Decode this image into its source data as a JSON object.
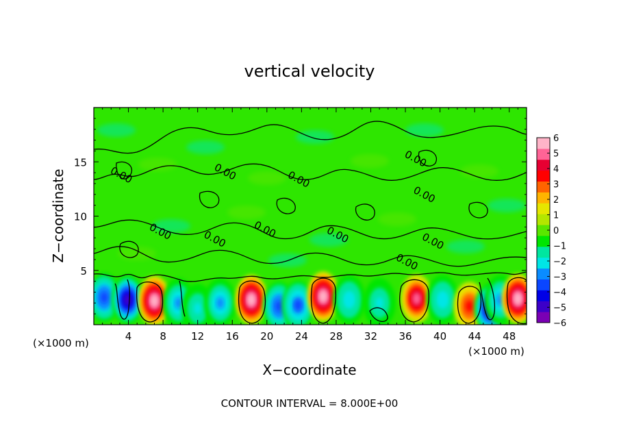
{
  "chart_data": {
    "type": "heatmap",
    "title": "vertical velocity",
    "xlabel": "X−coordinate",
    "ylabel": "Z−coordinate",
    "x_unit_left": "(×1000 m)",
    "x_unit_right": "(×1000 m)",
    "footer": "CONTOUR INTERVAL = 8.000E+00",
    "xlim": [
      0,
      50
    ],
    "ylim": [
      0,
      20
    ],
    "x_ticks": [
      4,
      8,
      12,
      16,
      20,
      24,
      28,
      32,
      36,
      40,
      44,
      48
    ],
    "y_ticks": [
      5,
      10,
      15
    ],
    "colorbar": {
      "min": -6,
      "max": 6,
      "tick_values": [
        6,
        5,
        4,
        3,
        2,
        1,
        0,
        -1,
        -2,
        -3,
        -4,
        -5,
        -6
      ],
      "tick_labels": [
        "6",
        "5",
        "4",
        "3",
        "2",
        "1",
        "0",
        "−1",
        "−2",
        "−3",
        "−4",
        "−5",
        "−6"
      ],
      "colors": [
        "#7a00b4",
        "#3c00c8",
        "#0000e6",
        "#0a46ff",
        "#0a8cff",
        "#00e6e6",
        "#00e6a0",
        "#00e600",
        "#5ae600",
        "#b4e600",
        "#e6e600",
        "#ffb400",
        "#ff6400",
        "#ff0000",
        "#e60032",
        "#ff6496",
        "#ffb4c8"
      ]
    },
    "contour_labels": [
      {
        "x": 3.0,
        "z": 13.5,
        "text": "0.00"
      },
      {
        "x": 15.0,
        "z": 13.8,
        "text": "0.00"
      },
      {
        "x": 23.5,
        "z": 13.1,
        "text": "0.00"
      },
      {
        "x": 37.0,
        "z": 15.0,
        "text": "0.00"
      },
      {
        "x": 38.0,
        "z": 11.7,
        "text": "0.00"
      },
      {
        "x": 7.5,
        "z": 8.3,
        "text": "0.00"
      },
      {
        "x": 13.8,
        "z": 7.6,
        "text": "0.00"
      },
      {
        "x": 19.6,
        "z": 8.5,
        "text": "0.00"
      },
      {
        "x": 28.0,
        "z": 8.0,
        "text": "0.00"
      },
      {
        "x": 39.0,
        "z": 7.4,
        "text": "0.00"
      },
      {
        "x": 36.0,
        "z": 5.5,
        "text": "0.00"
      }
    ],
    "cells": [
      {
        "x": 1.2,
        "z": 2.5,
        "w": -3.5
      },
      {
        "x": 3.9,
        "z": 2.3,
        "w": -4.6
      },
      {
        "x": 7.0,
        "z": 2.2,
        "w": 5.8
      },
      {
        "x": 9.8,
        "z": 2.0,
        "w": -2.6
      },
      {
        "x": 12.0,
        "z": 1.5,
        "w": -1.8
      },
      {
        "x": 14.6,
        "z": 2.0,
        "w": -2.8
      },
      {
        "x": 18.2,
        "z": 2.3,
        "w": 6.0
      },
      {
        "x": 21.4,
        "z": 1.7,
        "w": -3.6
      },
      {
        "x": 23.6,
        "z": 1.8,
        "w": -3.2
      },
      {
        "x": 26.5,
        "z": 2.6,
        "w": 5.9
      },
      {
        "x": 29.5,
        "z": 2.3,
        "w": -2.4
      },
      {
        "x": 33.0,
        "z": 2.0,
        "w": -1.8
      },
      {
        "x": 37.3,
        "z": 2.4,
        "w": 4.8
      },
      {
        "x": 40.3,
        "z": 2.3,
        "w": -2.4
      },
      {
        "x": 43.4,
        "z": 1.7,
        "w": 3.4
      },
      {
        "x": 45.8,
        "z": 1.5,
        "w": -5.0
      },
      {
        "x": 47.0,
        "z": 2.3,
        "w": -2.8
      },
      {
        "x": 49.0,
        "z": 2.4,
        "w": 5.9
      }
    ]
  }
}
